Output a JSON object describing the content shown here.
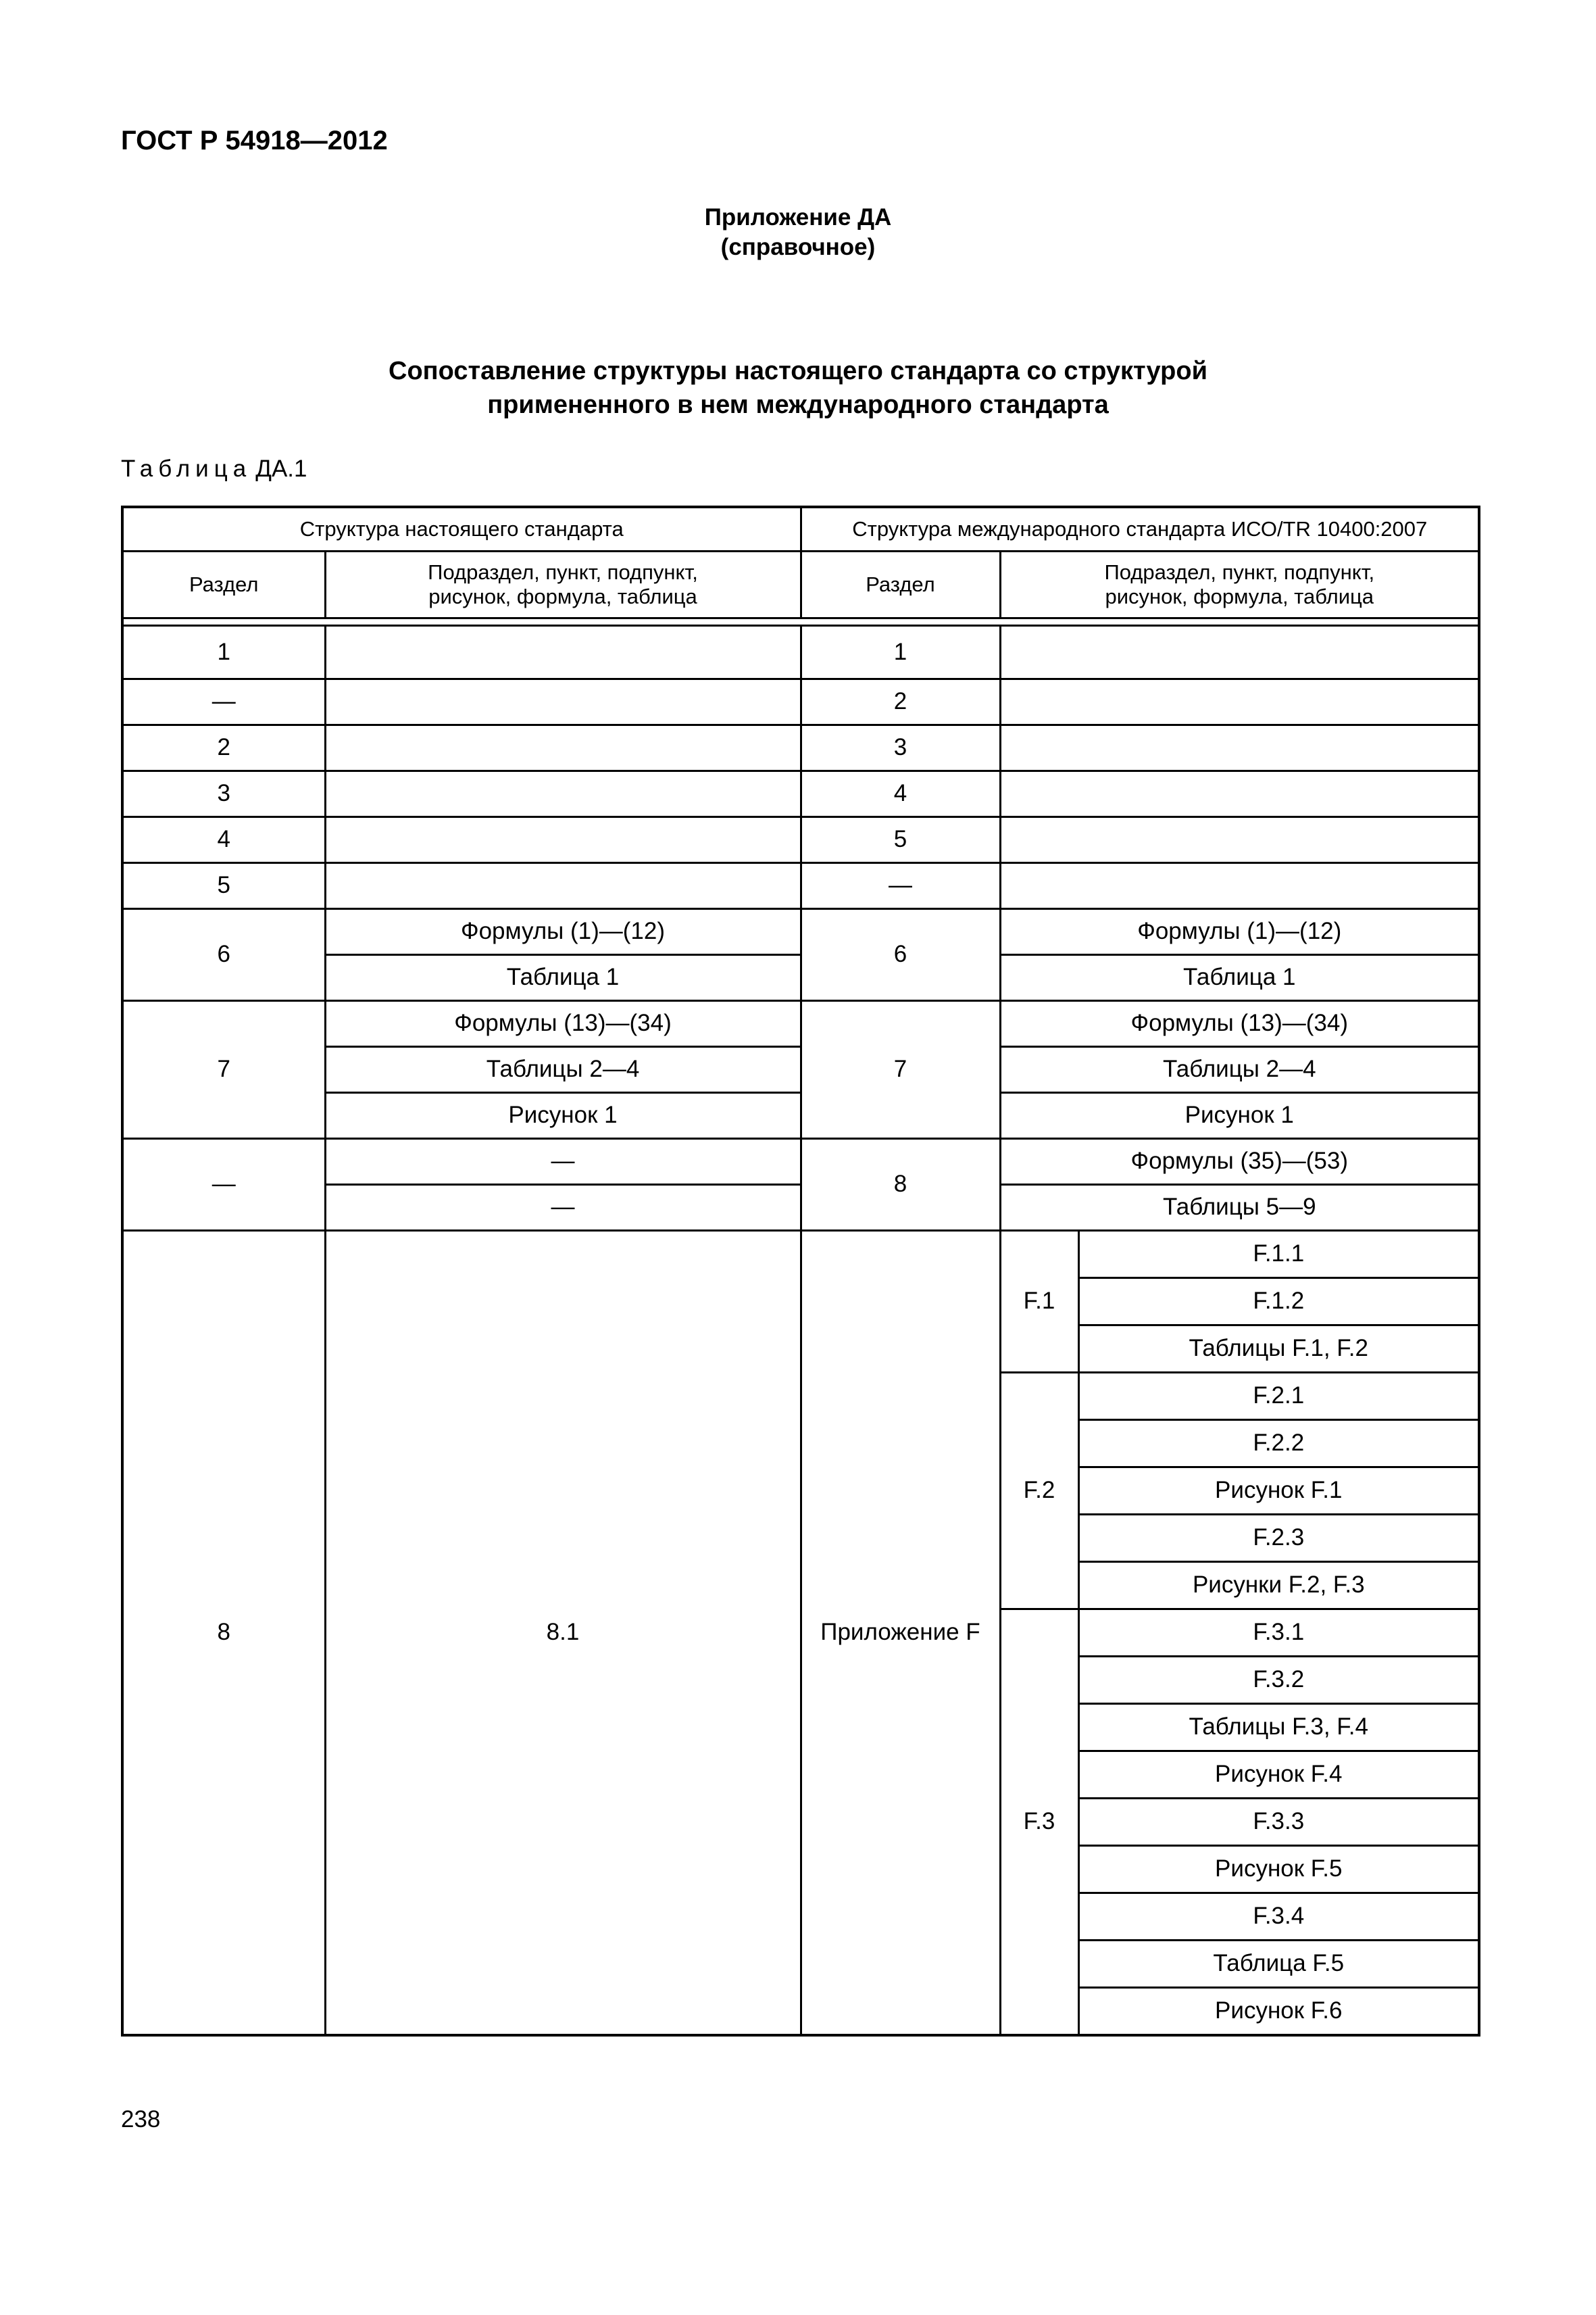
{
  "header": {
    "gost": "ГОСТ Р 54918—2012",
    "appendix": "Приложение ДА",
    "appendix_type": "(справочное)",
    "title_lines": [
      "Сопоставление структуры настоящего стандарта со структурой",
      "примененного в нем международного стандарта"
    ],
    "table_label_word": "Таблица",
    "table_label_num": "ДА.1"
  },
  "table": {
    "left_group": "Структура настоящего стандарта",
    "right_group": "Структура международного стандарта ИСО/TR 10400:2007",
    "col_section": "Раздел",
    "col_sub_lines": [
      "Подраздел, пункт, подпункт,",
      "рисунок, формула, таблица"
    ],
    "simple_rows": [
      [
        "1",
        "",
        "1",
        ""
      ],
      [
        "—",
        "",
        "2",
        ""
      ],
      [
        "2",
        "",
        "3",
        ""
      ],
      [
        "3",
        "",
        "4",
        ""
      ],
      [
        "4",
        "",
        "5",
        ""
      ],
      [
        "5",
        "",
        "—",
        ""
      ]
    ],
    "groups": [
      {
        "left_section": "6",
        "left_items": [
          "Формулы (1)—(12)",
          "Таблица 1"
        ],
        "right_section": "6",
        "right_items": [
          "Формулы (1)—(12)",
          "Таблица 1"
        ]
      },
      {
        "left_section": "7",
        "left_items": [
          "Формулы (13)—(34)",
          "Таблицы 2—4",
          "Рисунок 1"
        ],
        "right_section": "7",
        "right_items": [
          "Формулы (13)—(34)",
          "Таблицы 2—4",
          "Рисунок 1"
        ]
      },
      {
        "left_section": "—",
        "left_items": [
          "—",
          "—"
        ],
        "right_section": "8",
        "right_items": [
          "Формулы (35)—(53)",
          "Таблицы 5—9"
        ]
      }
    ],
    "final": {
      "left_section": "8",
      "left_item": "8.1",
      "right_section": "Приложение F",
      "subsections": [
        {
          "id": "F.1",
          "items": [
            "F.1.1",
            "F.1.2",
            "Таблицы F.1, F.2"
          ]
        },
        {
          "id": "F.2",
          "items": [
            "F.2.1",
            "F.2.2",
            "Рисунок F.1",
            "F.2.3",
            "Рисунки F.2, F.3"
          ]
        },
        {
          "id": "F.3",
          "items": [
            "F.3.1",
            "F.3.2",
            "Таблицы F.3, F.4",
            "Рисунок F.4",
            "F.3.3",
            "Рисунок F.5",
            "F.3.4",
            "Таблица F.5",
            "Рисунок F.6"
          ]
        }
      ]
    }
  },
  "footer": {
    "page_number": "238"
  }
}
